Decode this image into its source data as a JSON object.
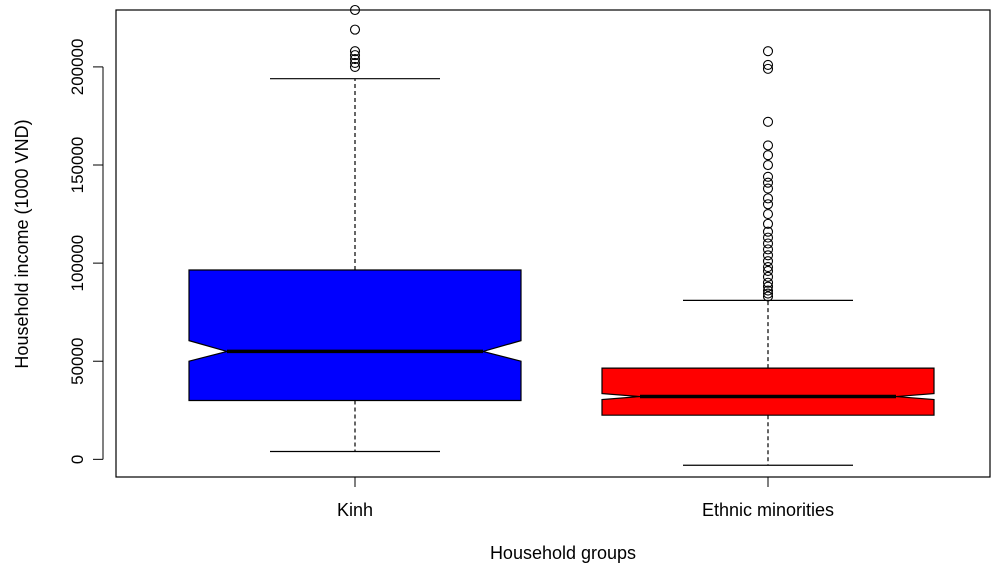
{
  "chart_data": {
    "type": "boxplot",
    "notched": true,
    "xlabel": "Household groups",
    "ylabel": "Household income (1000 VND)",
    "ylim": [
      -9000,
      229000
    ],
    "yticks": [
      0,
      50000,
      100000,
      150000,
      200000
    ],
    "ytick_labels": [
      "0",
      "50000",
      "100000",
      "150000",
      "200000"
    ],
    "categories": [
      "Kinh",
      "Ethnic minorities"
    ],
    "boxes": [
      {
        "name": "Kinh",
        "color": "#0000FF",
        "whisker_low": 4000,
        "q1": 30000,
        "median": 55000,
        "q3": 96500,
        "whisker_high": 194000,
        "notch_low": 50000,
        "notch_high": 60500,
        "outliers": [
          200000,
          202000,
          204000,
          206000,
          208000,
          219000,
          229000
        ]
      },
      {
        "name": "Ethnic minorities",
        "color": "#FF0000",
        "whisker_low": -3000,
        "q1": 22500,
        "median": 32000,
        "q3": 46500,
        "whisker_high": 81000,
        "notch_low": 30500,
        "notch_high": 33500,
        "outliers": [
          83000,
          84500,
          86000,
          88000,
          90000,
          93000,
          96000,
          98000,
          101000,
          104000,
          107000,
          110000,
          113000,
          116000,
          120000,
          125000,
          130000,
          133000,
          138000,
          141000,
          144000,
          150000,
          155000,
          160000,
          172000,
          199000,
          201000,
          208000
        ]
      }
    ]
  }
}
